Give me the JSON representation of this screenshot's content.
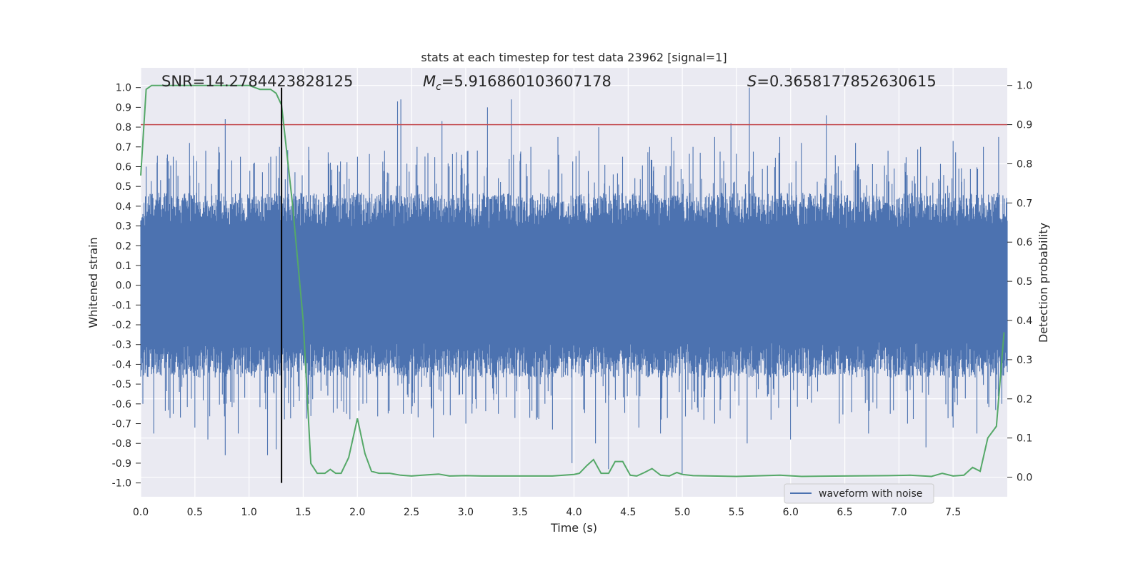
{
  "chart_data": {
    "type": "line",
    "title": "stats at each timestep for test data 23962 [signal=1]",
    "xlabel": "Time (s)",
    "ylabel": "Whitened strain",
    "y2label": "Detection probability",
    "xlim": [
      0.0,
      8.0
    ],
    "ylim": [
      -1.07,
      1.1
    ],
    "y2lim": [
      -0.05,
      1.045
    ],
    "xticks": [
      "0.0",
      "0.5",
      "1.0",
      "1.5",
      "2.0",
      "2.5",
      "3.0",
      "3.5",
      "4.0",
      "4.5",
      "5.0",
      "5.5",
      "6.0",
      "6.5",
      "7.0",
      "7.5"
    ],
    "yticks": [
      "1.0",
      "0.9",
      "0.8",
      "0.7",
      "0.6",
      "0.5",
      "0.4",
      "0.3",
      "0.2",
      "0.1",
      "0.0",
      "-0.1",
      "-0.2",
      "-0.3",
      "-0.4",
      "-0.5",
      "-0.6",
      "-0.7",
      "-0.8",
      "-0.9",
      "-1.0"
    ],
    "y2ticks": [
      "1.0",
      "0.9",
      "0.8",
      "0.7",
      "0.6",
      "0.5",
      "0.4",
      "0.3",
      "0.2",
      "0.1",
      "0.0"
    ],
    "grid": true,
    "legend_position": "lower-right",
    "annotations": {
      "snr": "SNR=14.2784423828125",
      "mc_symbol": "M",
      "mc_sub": "c",
      "mc_value": "=5.916860103607178",
      "s_symbol": "S",
      "s_value": "=0.3658177852630615"
    },
    "threshold": {
      "y2": 0.9,
      "color": "#c44e52"
    },
    "marker_line": {
      "x": 1.3,
      "color": "#000000"
    },
    "series": [
      {
        "name": "waveform with noise",
        "axis": "left",
        "color": "#4c72b0",
        "style": "dense-noise",
        "envelope_typical": 0.4,
        "spikes_up": [
          [
            0.05,
            0.6
          ],
          [
            0.15,
            0.62
          ],
          [
            0.3,
            0.65
          ],
          [
            0.45,
            0.72
          ],
          [
            0.6,
            0.68
          ],
          [
            0.72,
            0.7
          ],
          [
            0.78,
            0.84
          ],
          [
            0.92,
            0.65
          ],
          [
            1.05,
            0.62
          ],
          [
            1.2,
            0.65
          ],
          [
            1.28,
            0.7
          ],
          [
            1.55,
            0.7
          ],
          [
            1.75,
            0.62
          ],
          [
            2.0,
            0.65
          ],
          [
            2.25,
            0.68
          ],
          [
            2.37,
            0.93
          ],
          [
            2.4,
            0.94
          ],
          [
            2.55,
            0.7
          ],
          [
            2.78,
            0.83
          ],
          [
            3.02,
            0.68
          ],
          [
            3.2,
            0.9
          ],
          [
            3.42,
            0.94
          ],
          [
            3.6,
            0.7
          ],
          [
            3.85,
            0.75
          ],
          [
            4.05,
            0.68
          ],
          [
            4.23,
            0.8
          ],
          [
            4.45,
            0.65
          ],
          [
            4.7,
            0.7
          ],
          [
            4.9,
            0.75
          ],
          [
            5.1,
            0.7
          ],
          [
            5.3,
            0.75
          ],
          [
            5.45,
            0.82
          ],
          [
            5.62,
            1.0
          ],
          [
            5.9,
            0.75
          ],
          [
            6.1,
            0.72
          ],
          [
            6.33,
            0.86
          ],
          [
            6.6,
            0.72
          ],
          [
            6.9,
            0.68
          ],
          [
            7.2,
            0.7
          ],
          [
            7.5,
            0.73
          ],
          [
            7.78,
            0.7
          ],
          [
            7.92,
            0.75
          ]
        ],
        "spikes_down": [
          [
            0.02,
            -0.6
          ],
          [
            0.12,
            -0.75
          ],
          [
            0.3,
            -0.65
          ],
          [
            0.5,
            -0.72
          ],
          [
            0.62,
            -0.78
          ],
          [
            0.78,
            -0.86
          ],
          [
            0.9,
            -0.75
          ],
          [
            1.17,
            -0.86
          ],
          [
            1.25,
            -0.83
          ],
          [
            1.55,
            -0.6
          ],
          [
            1.9,
            -0.65
          ],
          [
            2.05,
            -0.6
          ],
          [
            2.5,
            -0.65
          ],
          [
            2.7,
            -0.77
          ],
          [
            3.0,
            -0.7
          ],
          [
            3.3,
            -0.65
          ],
          [
            3.65,
            -0.68
          ],
          [
            3.8,
            -0.73
          ],
          [
            3.98,
            -0.9
          ],
          [
            4.2,
            -0.8
          ],
          [
            4.32,
            -0.93
          ],
          [
            4.6,
            -0.72
          ],
          [
            4.8,
            -0.75
          ],
          [
            5.0,
            -0.96
          ],
          [
            5.3,
            -0.7
          ],
          [
            5.6,
            -0.8
          ],
          [
            5.82,
            -0.68
          ],
          [
            6.0,
            -0.78
          ],
          [
            6.45,
            -0.7
          ],
          [
            6.72,
            -0.75
          ],
          [
            7.08,
            -0.7
          ],
          [
            7.25,
            -0.82
          ],
          [
            7.5,
            -0.72
          ],
          [
            7.72,
            -0.75
          ],
          [
            7.95,
            -0.6
          ]
        ]
      },
      {
        "name": "",
        "axis": "right",
        "color": "#55a868",
        "x": [
          0.0,
          0.05,
          0.1,
          0.2,
          0.3,
          0.5,
          0.8,
          1.0,
          1.05,
          1.1,
          1.2,
          1.25,
          1.3,
          1.4,
          1.5,
          1.57,
          1.63,
          1.7,
          1.75,
          1.8,
          1.85,
          1.92,
          2.0,
          2.07,
          2.13,
          2.2,
          2.3,
          2.4,
          2.5,
          2.6,
          2.75,
          2.85,
          3.0,
          3.15,
          3.5,
          3.8,
          4.0,
          4.05,
          4.12,
          4.18,
          4.25,
          4.32,
          4.38,
          4.45,
          4.52,
          4.58,
          4.65,
          4.72,
          4.8,
          4.88,
          4.95,
          5.0,
          5.1,
          5.5,
          5.9,
          6.1,
          6.5,
          6.9,
          7.1,
          7.3,
          7.4,
          7.5,
          7.6,
          7.68,
          7.75,
          7.82,
          7.9,
          7.97
        ],
        "y": [
          0.77,
          0.99,
          1.0,
          1.0,
          1.0,
          1.0,
          1.0,
          1.0,
          0.995,
          0.99,
          0.99,
          0.98,
          0.95,
          0.7,
          0.4,
          0.035,
          0.01,
          0.01,
          0.02,
          0.01,
          0.01,
          0.05,
          0.15,
          0.06,
          0.015,
          0.01,
          0.01,
          0.005,
          0.003,
          0.005,
          0.008,
          0.003,
          0.004,
          0.003,
          0.003,
          0.003,
          0.007,
          0.01,
          0.03,
          0.045,
          0.01,
          0.01,
          0.04,
          0.04,
          0.005,
          0.003,
          0.012,
          0.022,
          0.005,
          0.003,
          0.012,
          0.007,
          0.004,
          0.002,
          0.005,
          0.002,
          0.003,
          0.004,
          0.005,
          0.002,
          0.01,
          0.003,
          0.005,
          0.025,
          0.015,
          0.1,
          0.13,
          0.37
        ]
      }
    ]
  }
}
